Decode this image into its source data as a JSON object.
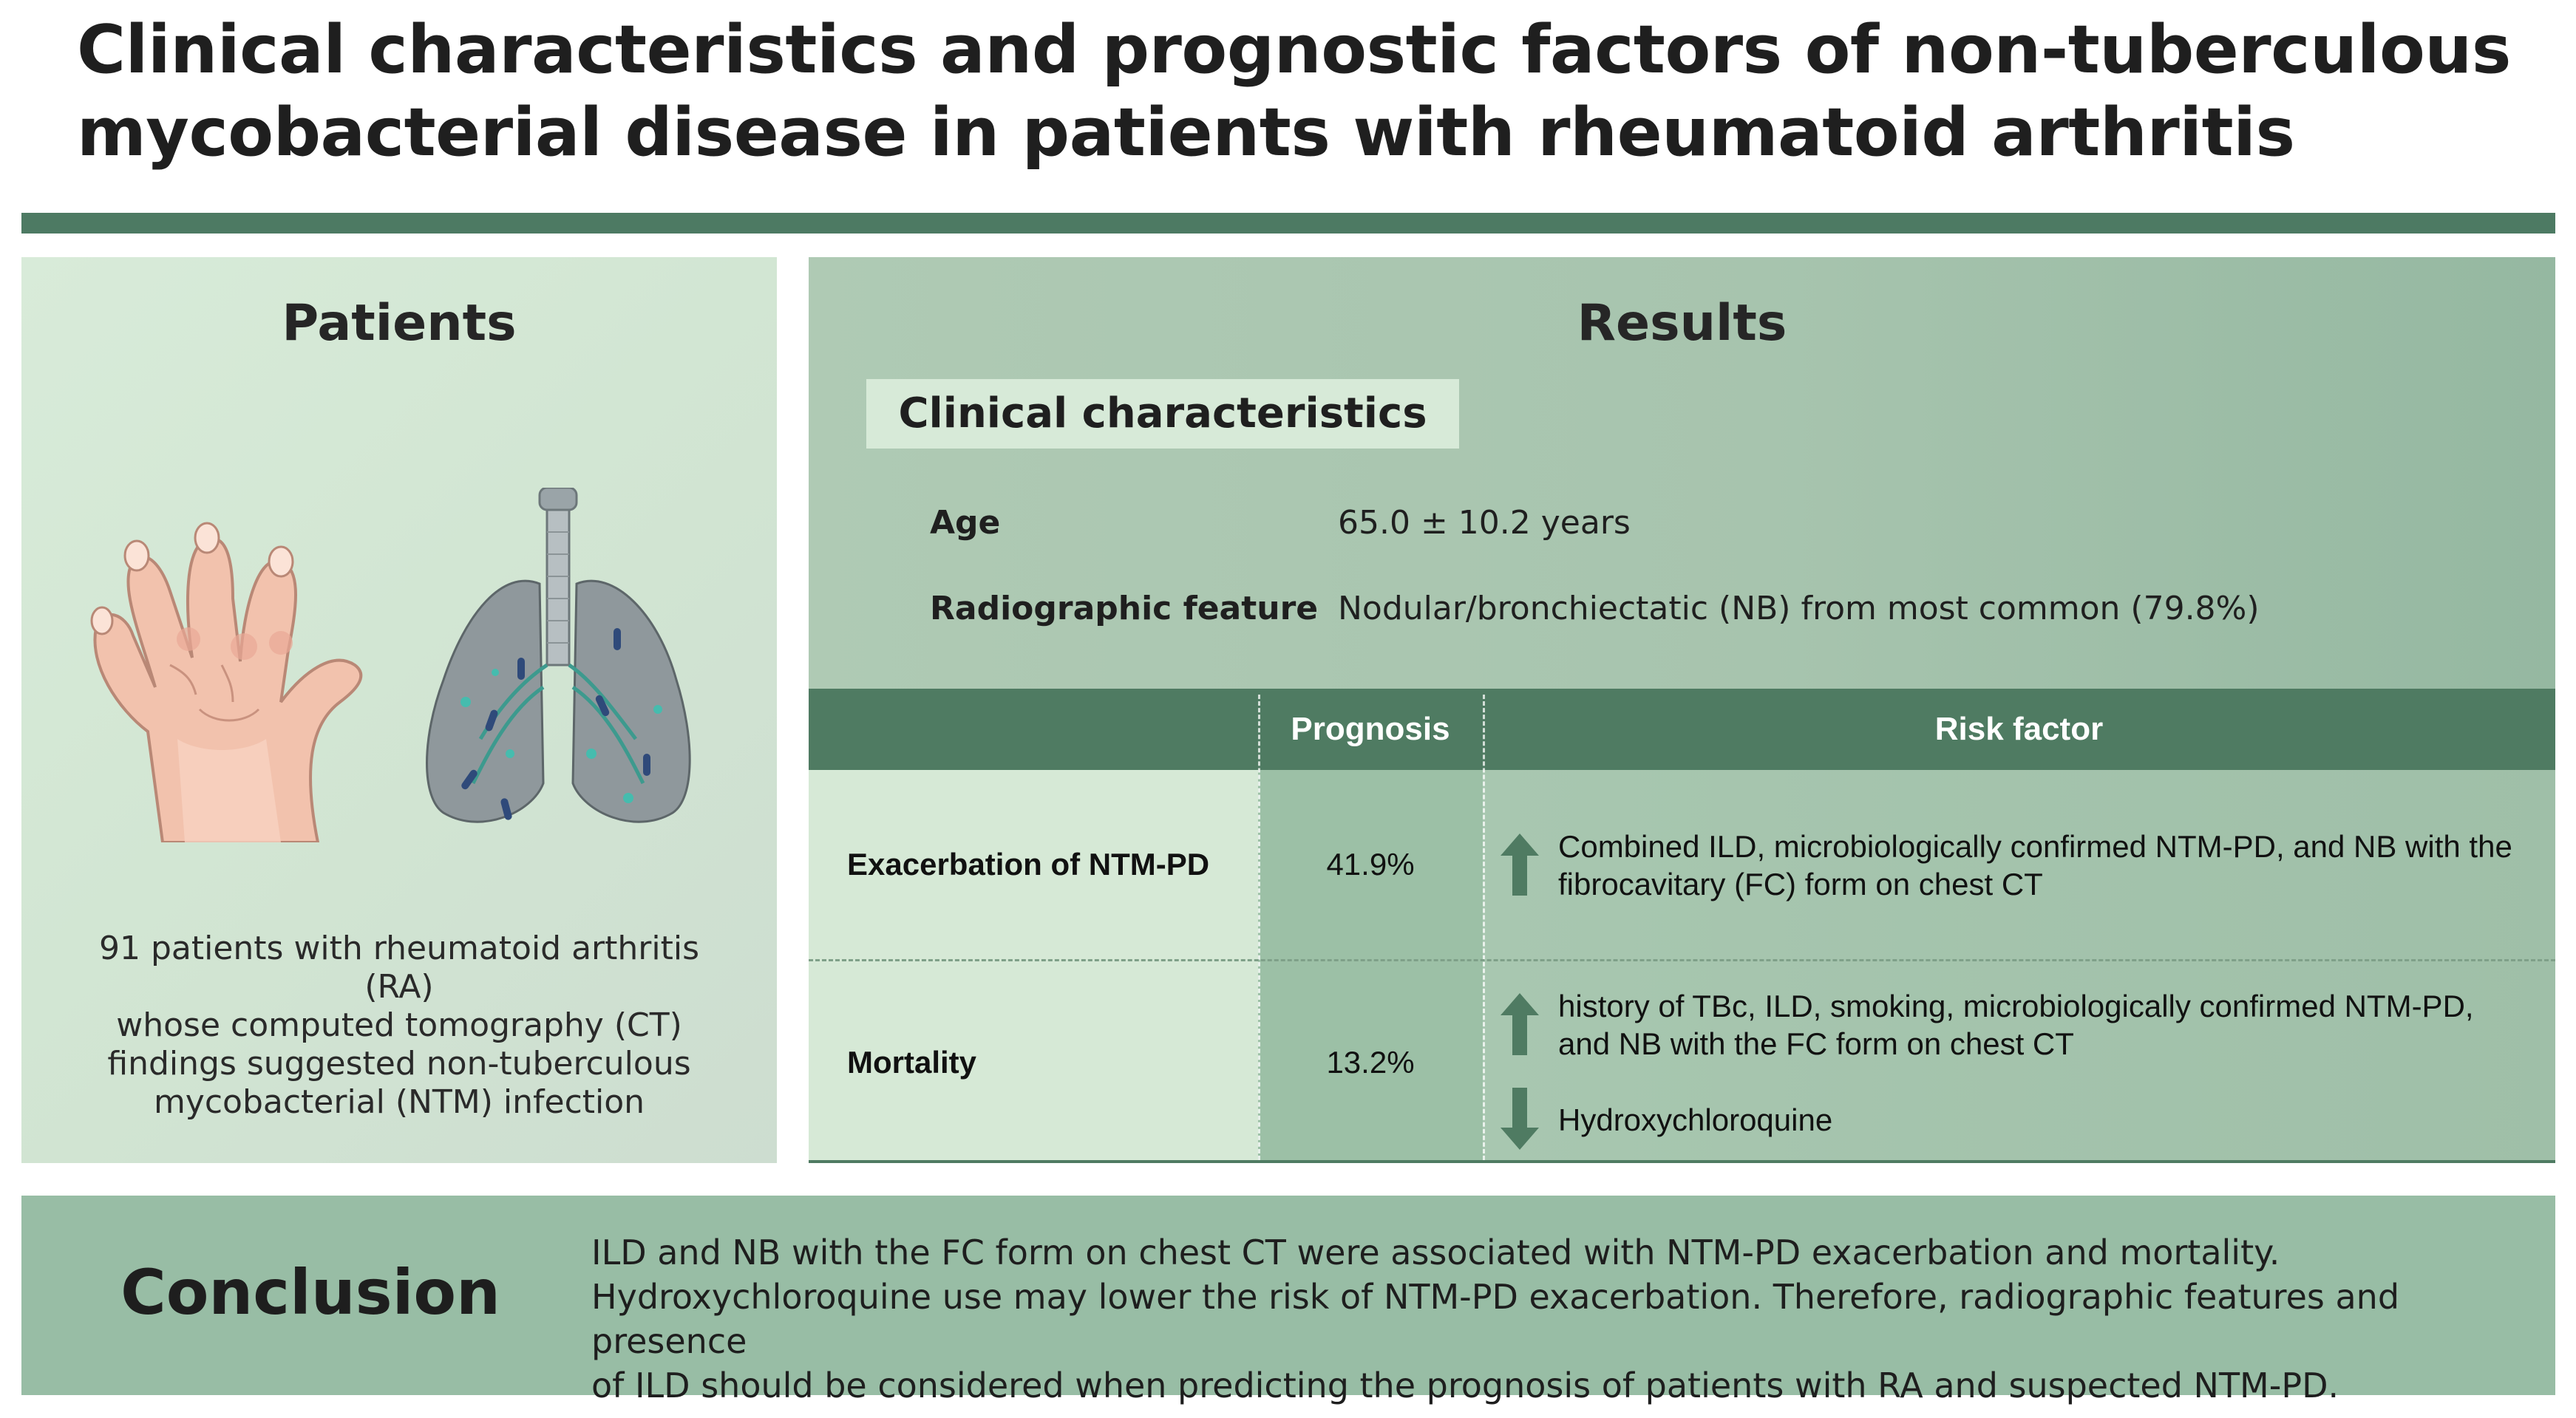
{
  "title": {
    "line1": "Clinical characteristics and prognostic factors of non-tuberculous",
    "line2": "mycobacterial disease in patients with rheumatoid arthritis"
  },
  "patients": {
    "heading": "Patients",
    "description": [
      "91 patients with rheumatoid arthritis (RA)",
      "whose computed tomography (CT)",
      "findings suggested non-tuberculous",
      "mycobacterial (NTM) infection"
    ]
  },
  "results": {
    "heading": "Results",
    "clinical_characteristics": {
      "label": "Clinical characteristics",
      "rows": [
        {
          "label": "Age",
          "value": "65.0 ± 10.2 years"
        },
        {
          "label": "Radiographic feature",
          "value": "Nodular/bronchiectatic (NB) from most common (79.8%)"
        }
      ]
    },
    "table": {
      "headers": [
        "",
        "Prognosis",
        "Risk factor"
      ],
      "rows": [
        {
          "outcome": "Exacerbation of NTM-PD",
          "prognosis": "41.9%",
          "risk_up": [
            "Combined ILD, microbiologically confirmed NTM-PD, and NB with the",
            "fibrocavitary (FC) form on chest CT"
          ]
        },
        {
          "outcome": "Mortality",
          "prognosis": "13.2%",
          "risk_up": [
            "history of TBc, ILD, smoking, microbiologically confirmed NTM-PD,",
            "and NB with the FC form on chest CT"
          ],
          "risk_down": "Hydroxychloroquine"
        }
      ]
    }
  },
  "conclusion": {
    "heading": "Conclusion",
    "lines": [
      "ILD and NB with the FC form on chest CT were associated with NTM-PD exacerbation and mortality.",
      "Hydroxychloroquine use may lower the risk of NTM-PD exacerbation. Therefore, radiographic features and presence",
      "of ILD should be considered when predicting the prognosis of patients with RA and suspected NTM-PD."
    ]
  },
  "colors": {
    "accent_dark_green": "#4d7a63",
    "panel_light_green": "#d6e9d6",
    "panel_mid_green": "#a7c4ae",
    "arrow_green": "#4f7b62"
  }
}
